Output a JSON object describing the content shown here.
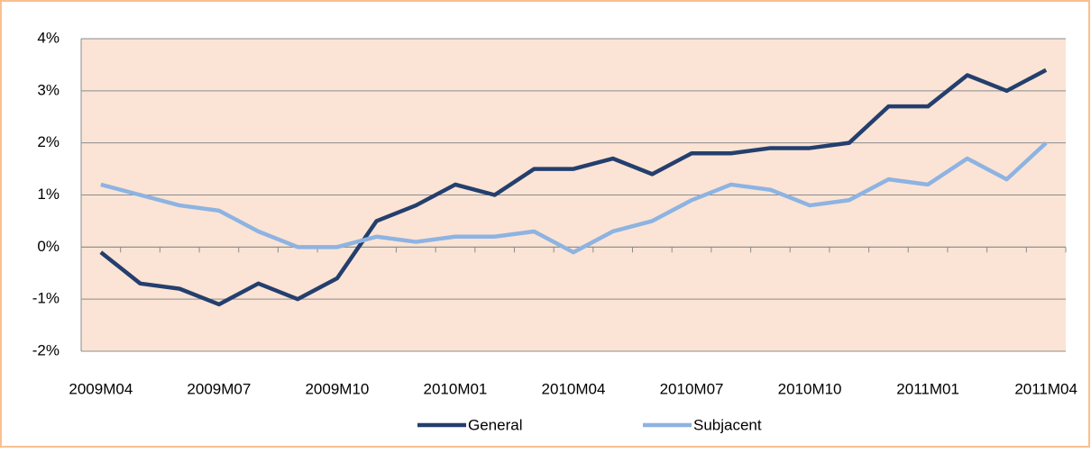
{
  "chart_data": {
    "type": "line",
    "categories": [
      "2009M04",
      null,
      null,
      "2009M07",
      null,
      null,
      "2009M10",
      null,
      null,
      "2010M01",
      null,
      null,
      "2010M04",
      null,
      null,
      "2010M07",
      null,
      null,
      "2010M10",
      null,
      null,
      "2011M01",
      null,
      null,
      "2011M04"
    ],
    "series": [
      {
        "name": "General",
        "color": "#243f6e",
        "values": [
          -0.1,
          -0.7,
          -0.8,
          -1.1,
          -0.7,
          -1.0,
          -0.6,
          0.5,
          0.8,
          1.2,
          1.0,
          1.5,
          1.5,
          1.7,
          1.4,
          1.8,
          1.8,
          1.9,
          1.9,
          2.0,
          2.7,
          2.7,
          3.3,
          3.0,
          3.4
        ]
      },
      {
        "name": "Subjacent",
        "color": "#8db3e2",
        "values": [
          1.2,
          1.0,
          0.8,
          0.7,
          0.3,
          0.0,
          0.0,
          0.2,
          0.1,
          0.2,
          0.2,
          0.3,
          -0.1,
          0.3,
          0.5,
          0.9,
          1.2,
          1.1,
          0.8,
          0.9,
          1.3,
          1.2,
          1.7,
          1.3,
          2.0
        ]
      }
    ],
    "ylim": [
      -2,
      4
    ],
    "yticks": [
      {
        "value": -2,
        "label": "-2%"
      },
      {
        "value": -1,
        "label": "-1%"
      },
      {
        "value": 0,
        "label": "0%"
      },
      {
        "value": 1,
        "label": "1%"
      },
      {
        "value": 2,
        "label": "2%"
      },
      {
        "value": 3,
        "label": "3%"
      },
      {
        "value": 4,
        "label": "4%"
      }
    ],
    "grid": true,
    "plot_background": "#fbe4d5",
    "legend": "bottom"
  }
}
